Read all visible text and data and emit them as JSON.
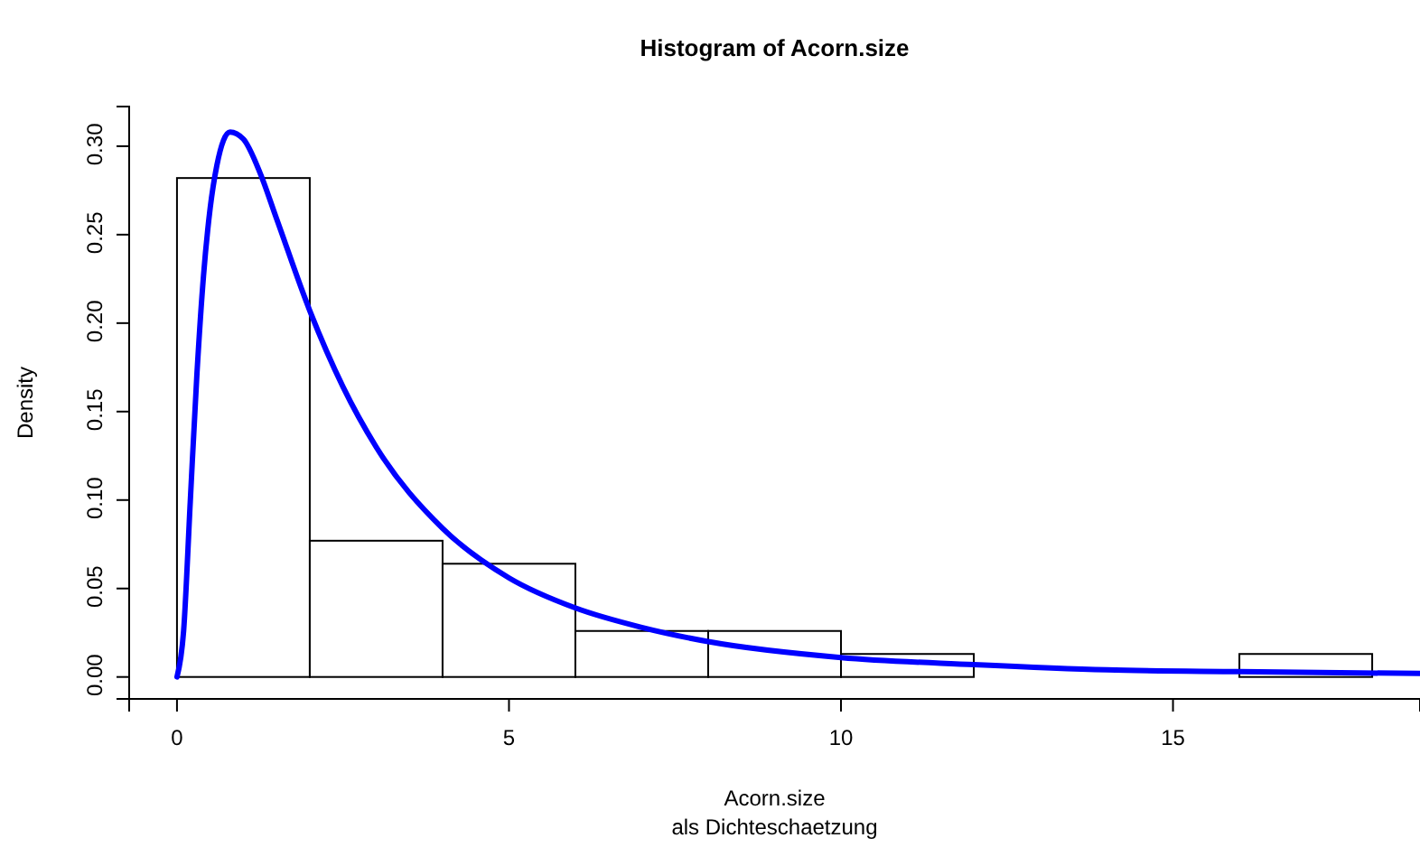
{
  "chart_data": {
    "type": "histogram",
    "title": "Histogram of Acorn.size",
    "xlabel": "Acorn.size",
    "subtitle": "als Dichteschaetzung",
    "ylabel": "Density",
    "series": [
      {
        "color": "#ffffff",
        "bins": [
          0,
          2,
          4,
          6,
          8,
          10,
          12,
          14,
          16,
          18
        ],
        "values": [
          0.282,
          0.077,
          0.064,
          0.026,
          0.026,
          0.013,
          0,
          0,
          0.013
        ]
      },
      {
        "type": "line",
        "color": "#0000ff",
        "x": [
          0,
          0.1,
          0.2,
          0.3,
          0.4,
          0.5,
          0.6,
          0.8,
          1,
          1.25,
          1.5,
          2,
          2.5,
          3,
          4,
          5,
          6,
          7,
          8,
          10,
          12,
          14,
          16,
          18.72
        ],
        "values": [
          0,
          0.026,
          0.099,
          0.171,
          0.227,
          0.265,
          0.289,
          0.308,
          0.304,
          0.285,
          0.259,
          0.207,
          0.164,
          0.13,
          0.084,
          0.056,
          0.039,
          0.028,
          0.02,
          0.011,
          0.007,
          0.004,
          0.003,
          0.002
        ]
      }
    ],
    "xlim": [
      -0.72,
      18.72
    ],
    "xticks": [
      0,
      5,
      10,
      15
    ],
    "ylim": [
      -0.0124,
      0.3224
    ],
    "yticks": [
      {
        "value": 0,
        "label": "0.00"
      },
      {
        "value": 0.05,
        "label": "0.05"
      },
      {
        "value": 0.1,
        "label": "0.10"
      },
      {
        "value": 0.15,
        "label": "0.15"
      },
      {
        "value": 0.2,
        "label": "0.20"
      },
      {
        "value": 0.25,
        "label": "0.25"
      },
      {
        "value": 0.3,
        "label": "0.30"
      }
    ],
    "grid": false
  }
}
